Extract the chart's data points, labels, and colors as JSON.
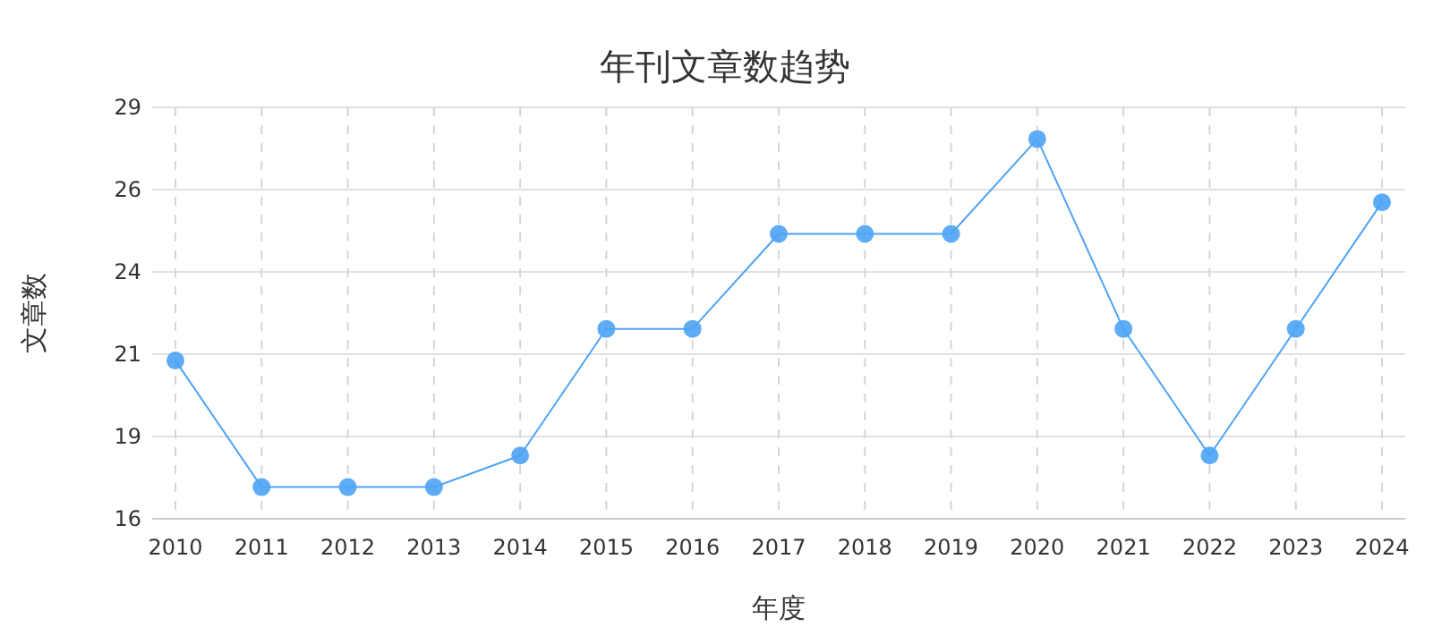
{
  "chart_data": {
    "type": "line",
    "title": "年刊文章数趋势",
    "xlabel": "年度",
    "ylabel": "文章数",
    "categories": [
      "2010",
      "2011",
      "2012",
      "2013",
      "2014",
      "2015",
      "2016",
      "2017",
      "2018",
      "2019",
      "2020",
      "2021",
      "2022",
      "2023",
      "2024"
    ],
    "series": [
      {
        "color": "#4da3f5",
        "values": [
          21,
          17,
          17,
          17,
          18,
          22,
          22,
          25,
          25,
          25,
          28,
          22,
          18,
          22,
          26
        ]
      }
    ],
    "ylim": [
      16,
      29
    ],
    "yticks": [
      {
        "value": 16,
        "label": "16"
      },
      {
        "value": 18.6,
        "label": "19"
      },
      {
        "value": 21.2,
        "label": "21"
      },
      {
        "value": 23.8,
        "label": "24"
      },
      {
        "value": 26.4,
        "label": "26"
      },
      {
        "value": 29,
        "label": "29"
      }
    ],
    "grid": true,
    "marker": "circle"
  }
}
